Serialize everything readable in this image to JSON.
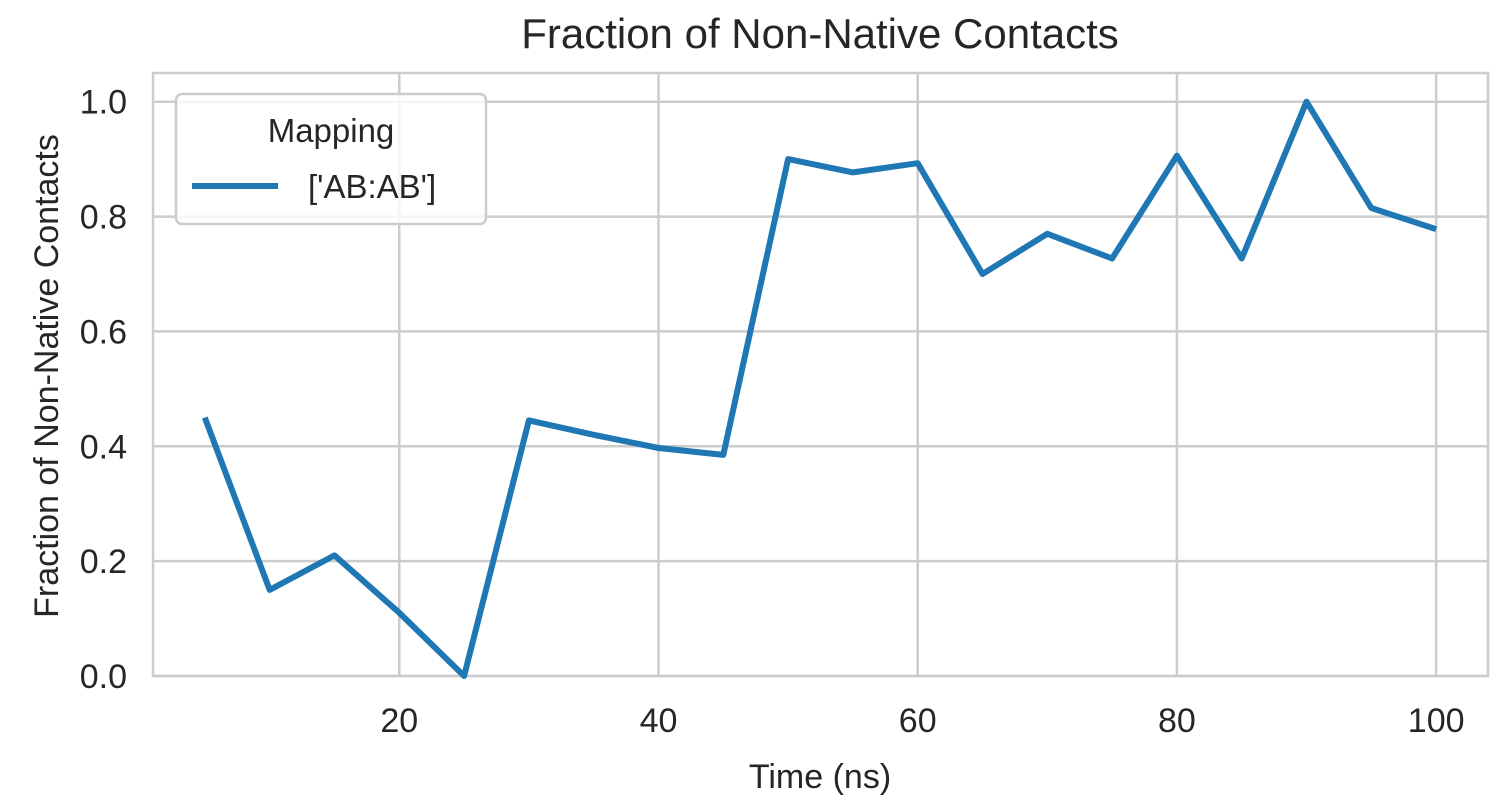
{
  "chart_data": {
    "type": "line",
    "title": "Fraction of Non-Native Contacts",
    "xlabel": "Time (ns)",
    "ylabel": "Fraction of Non-Native Contacts",
    "xlim": [
      1,
      104
    ],
    "ylim": [
      0,
      1.05
    ],
    "xticks": [
      20,
      40,
      60,
      80,
      100
    ],
    "yticks": [
      0.0,
      0.2,
      0.4,
      0.6,
      0.8,
      1.0
    ],
    "xtick_labels": [
      "20",
      "40",
      "60",
      "80",
      "100"
    ],
    "ytick_labels": [
      "0.0",
      "0.2",
      "0.4",
      "0.6",
      "0.8",
      "1.0"
    ],
    "grid": true,
    "legend": {
      "title": "Mapping",
      "position": "top-left"
    },
    "x": [
      5,
      10,
      15,
      20,
      25,
      30,
      35,
      40,
      45,
      50,
      55,
      60,
      65,
      70,
      75,
      80,
      85,
      90,
      95,
      100
    ],
    "series": [
      {
        "name": "['AB:AB']",
        "color": "#1f77b4",
        "values": [
          0.45,
          0.15,
          0.21,
          0.11,
          0.0,
          0.445,
          0.42,
          0.397,
          0.385,
          0.9,
          0.877,
          0.893,
          0.7,
          0.77,
          0.727,
          0.906,
          0.727,
          1.0,
          0.815,
          0.778
        ]
      }
    ]
  }
}
